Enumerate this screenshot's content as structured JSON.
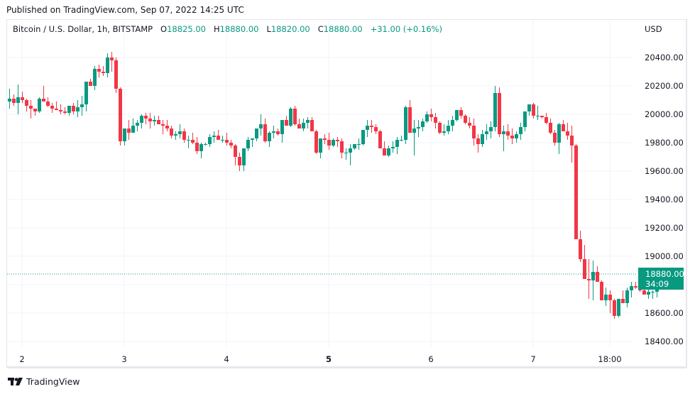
{
  "header": {
    "published": "Published on TradingView.com, Sep 07, 2022 14:25 UTC"
  },
  "legend": {
    "symbol": "Bitcoin / U.S. Dollar, 1h, BITSTAMP",
    "o_label": "O",
    "o_value": "18825.00",
    "h_label": "H",
    "h_value": "18880.00",
    "l_label": "L",
    "l_value": "18820.00",
    "c_label": "C",
    "c_value": "18880.00",
    "change": "+31.00 (+0.16%)"
  },
  "price_axis": {
    "currency": "USD",
    "ticks": [
      "20400.00",
      "20200.00",
      "20000.00",
      "19800.00",
      "19600.00",
      "19400.00",
      "19200.00",
      "19000.00",
      "18600.00",
      "18400.00"
    ],
    "last_price": "18880.00",
    "countdown": "34:09"
  },
  "time_axis": {
    "ticks": [
      {
        "label": "2",
        "x": 31,
        "bold": false
      },
      {
        "label": "3",
        "x": 175,
        "bold": false
      },
      {
        "label": "4",
        "x": 319,
        "bold": false
      },
      {
        "label": "5",
        "x": 463,
        "bold": true
      },
      {
        "label": "6",
        "x": 607,
        "bold": false
      },
      {
        "label": "7",
        "x": 751,
        "bold": false
      },
      {
        "label": "18:00",
        "x": 859,
        "bold": false
      }
    ]
  },
  "footer": {
    "brand": "TradingView"
  },
  "colors": {
    "up": "#089981",
    "down": "#f23645",
    "grid": "#f0f3fa",
    "frame": "#e6e6ee",
    "text": "#131722"
  },
  "chart_data": {
    "type": "candlestick",
    "title": "Bitcoin / U.S. Dollar, 1h, BITSTAMP",
    "xlabel": "",
    "ylabel": "USD",
    "ylim": [
      18330,
      20600
    ],
    "grid": true,
    "interval": "1h",
    "start": "Sep 1 21:00",
    "end": "Sep 7 14:00",
    "x_ticks": [
      "2",
      "3",
      "4",
      "5",
      "6",
      "7",
      "18:00"
    ],
    "y_ticks": [
      18400,
      18600,
      19000,
      19200,
      19400,
      19600,
      19800,
      20000,
      20200,
      20400
    ],
    "last": {
      "open": 18825,
      "high": 18880,
      "low": 18820,
      "close": 18880,
      "change": 31,
      "change_pct": 0.16
    },
    "candles": [
      [
        20090,
        20180,
        20040,
        20110
      ],
      [
        20110,
        20140,
        20060,
        20080
      ],
      [
        20080,
        20210,
        20000,
        20120
      ],
      [
        20120,
        20160,
        20080,
        20100
      ],
      [
        20100,
        20110,
        20020,
        20060
      ],
      [
        20060,
        20100,
        19970,
        20040
      ],
      [
        20040,
        20040,
        19990,
        20020
      ],
      [
        20020,
        20120,
        20010,
        20110
      ],
      [
        20110,
        20200,
        20090,
        20090
      ],
      [
        20090,
        20120,
        20050,
        20060
      ],
      [
        20060,
        20080,
        20010,
        20040
      ],
      [
        20040,
        20090,
        20030,
        20030
      ],
      [
        20030,
        20070,
        20000,
        20020
      ],
      [
        20020,
        20050,
        20000,
        20010
      ],
      [
        20010,
        20050,
        19990,
        20060
      ],
      [
        20060,
        20080,
        20000,
        20020
      ],
      [
        20020,
        20100,
        19980,
        20050
      ],
      [
        20050,
        20130,
        19990,
        20070
      ],
      [
        20070,
        20170,
        20020,
        20230
      ],
      [
        20230,
        20250,
        20200,
        20200
      ],
      [
        20200,
        20340,
        20170,
        20320
      ],
      [
        20320,
        20350,
        20260,
        20300
      ],
      [
        20300,
        20340,
        20270,
        20290
      ],
      [
        20290,
        20430,
        20260,
        20400
      ],
      [
        20400,
        20440,
        20300,
        20380
      ],
      [
        20380,
        20400,
        20150,
        20180
      ],
      [
        20180,
        20190,
        19780,
        19810
      ],
      [
        19810,
        19900,
        19780,
        19900
      ],
      [
        19900,
        19960,
        19820,
        19870
      ],
      [
        19870,
        19970,
        19870,
        19920
      ],
      [
        19920,
        19960,
        19880,
        19940
      ],
      [
        19940,
        20000,
        19900,
        19990
      ],
      [
        19990,
        20010,
        19930,
        19970
      ],
      [
        19970,
        20010,
        19900,
        19950
      ],
      [
        19950,
        19990,
        19920,
        19960
      ],
      [
        19960,
        19990,
        19930,
        19930
      ],
      [
        19930,
        19960,
        19860,
        19920
      ],
      [
        19920,
        19960,
        19880,
        19900
      ],
      [
        19900,
        19920,
        19830,
        19850
      ],
      [
        19850,
        19880,
        19820,
        19860
      ],
      [
        19860,
        19930,
        19830,
        19880
      ],
      [
        19880,
        19900,
        19800,
        19820
      ],
      [
        19820,
        19850,
        19760,
        19820
      ],
      [
        19820,
        19870,
        19790,
        19800
      ],
      [
        19800,
        19840,
        19720,
        19740
      ],
      [
        19740,
        19800,
        19690,
        19790
      ],
      [
        19790,
        19800,
        19780,
        19790
      ],
      [
        19790,
        19860,
        19770,
        19840
      ],
      [
        19840,
        19880,
        19800,
        19850
      ],
      [
        19850,
        19890,
        19820,
        19820
      ],
      [
        19820,
        19850,
        19800,
        19820
      ],
      [
        19820,
        19870,
        19780,
        19800
      ],
      [
        19800,
        19820,
        19760,
        19780
      ],
      [
        19780,
        19790,
        19640,
        19700
      ],
      [
        19700,
        19730,
        19600,
        19640
      ],
      [
        19640,
        19760,
        19600,
        19760
      ],
      [
        19760,
        19840,
        19740,
        19820
      ],
      [
        19820,
        19830,
        19770,
        19830
      ],
      [
        19830,
        19880,
        19810,
        19900
      ],
      [
        19900,
        20000,
        19850,
        19930
      ],
      [
        19930,
        19970,
        19800,
        19810
      ],
      [
        19810,
        19880,
        19770,
        19870
      ],
      [
        19870,
        19920,
        19830,
        19880
      ],
      [
        19880,
        19900,
        19850,
        19860
      ],
      [
        19860,
        19950,
        19800,
        19960
      ],
      [
        19960,
        19990,
        19940,
        19920
      ],
      [
        19920,
        20050,
        19910,
        20040
      ],
      [
        20040,
        20060,
        19920,
        19930
      ],
      [
        19930,
        19970,
        19900,
        19900
      ],
      [
        19900,
        19970,
        19880,
        19940
      ],
      [
        19940,
        19980,
        19900,
        19960
      ],
      [
        19960,
        19980,
        19880,
        19880
      ],
      [
        19880,
        19890,
        19720,
        19730
      ],
      [
        19730,
        19830,
        19690,
        19830
      ],
      [
        19830,
        19860,
        19790,
        19820
      ],
      [
        19820,
        19870,
        19750,
        19780
      ],
      [
        19780,
        19830,
        19770,
        19820
      ],
      [
        19820,
        19840,
        19770,
        19810
      ],
      [
        19810,
        19830,
        19690,
        19730
      ],
      [
        19730,
        19760,
        19680,
        19730
      ],
      [
        19730,
        19790,
        19640,
        19760
      ],
      [
        19760,
        19790,
        19750,
        19790
      ],
      [
        19790,
        19830,
        19750,
        19790
      ],
      [
        19790,
        19890,
        19780,
        19890
      ],
      [
        19890,
        19960,
        19840,
        19920
      ],
      [
        19920,
        19960,
        19870,
        19910
      ],
      [
        19910,
        19930,
        19860,
        19880
      ],
      [
        19880,
        19890,
        19760,
        19760
      ],
      [
        19760,
        19810,
        19710,
        19710
      ],
      [
        19710,
        19780,
        19700,
        19760
      ],
      [
        19760,
        19810,
        19730,
        19770
      ],
      [
        19770,
        19840,
        19720,
        19820
      ],
      [
        19820,
        19850,
        19810,
        19820
      ],
      [
        19820,
        20060,
        19790,
        20050
      ],
      [
        20050,
        20100,
        19940,
        19870
      ],
      [
        19870,
        19960,
        19710,
        19900
      ],
      [
        19900,
        19960,
        19840,
        19910
      ],
      [
        19910,
        19970,
        19880,
        19950
      ],
      [
        19950,
        20020,
        19940,
        20000
      ],
      [
        20000,
        20040,
        19950,
        19980
      ],
      [
        19980,
        20010,
        19900,
        19940
      ],
      [
        19940,
        19950,
        19860,
        19870
      ],
      [
        19870,
        19930,
        19850,
        19880
      ],
      [
        19880,
        19960,
        19860,
        19920
      ],
      [
        19920,
        19990,
        19880,
        19960
      ],
      [
        19960,
        20020,
        19950,
        20030
      ],
      [
        20030,
        20050,
        19970,
        19990
      ],
      [
        19990,
        20000,
        19930,
        19940
      ],
      [
        19940,
        19980,
        19900,
        19920
      ],
      [
        19920,
        19970,
        19780,
        19830
      ],
      [
        19830,
        19860,
        19730,
        19790
      ],
      [
        19790,
        19890,
        19770,
        19860
      ],
      [
        19860,
        19930,
        19820,
        19880
      ],
      [
        19880,
        19950,
        19830,
        19910
      ],
      [
        19910,
        20200,
        19880,
        20150
      ],
      [
        20150,
        20190,
        19840,
        19860
      ],
      [
        19860,
        19920,
        19740,
        19880
      ],
      [
        19880,
        19930,
        19820,
        19850
      ],
      [
        19850,
        19900,
        19790,
        19830
      ],
      [
        19830,
        19880,
        19800,
        19860
      ],
      [
        19860,
        19940,
        19820,
        19910
      ],
      [
        19910,
        20000,
        19880,
        20020
      ],
      [
        20020,
        20070,
        19990,
        20070
      ],
      [
        20070,
        20080,
        19970,
        19990
      ],
      [
        19990,
        20060,
        19960,
        19990
      ],
      [
        19990,
        19990,
        19970,
        19980
      ],
      [
        19980,
        20010,
        19930,
        19940
      ],
      [
        19940,
        19970,
        19860,
        19870
      ],
      [
        19870,
        19890,
        19780,
        19800
      ],
      [
        19800,
        19940,
        19720,
        19930
      ],
      [
        19930,
        19960,
        19900,
        19880
      ],
      [
        19880,
        19940,
        19820,
        19850
      ],
      [
        19850,
        19920,
        19660,
        19780
      ],
      [
        19780,
        19790,
        19130,
        19120
      ],
      [
        19120,
        19180,
        18960,
        18980
      ],
      [
        18980,
        19080,
        18920,
        18840
      ],
      [
        18840,
        18980,
        18700,
        18830
      ],
      [
        18830,
        18970,
        18690,
        18890
      ],
      [
        18890,
        18930,
        18820,
        18820
      ],
      [
        18820,
        18830,
        18720,
        18690
      ],
      [
        18690,
        18780,
        18650,
        18730
      ],
      [
        18730,
        18760,
        18600,
        18690
      ],
      [
        18690,
        18700,
        18560,
        18580
      ],
      [
        18580,
        18700,
        18570,
        18700
      ],
      [
        18700,
        18760,
        18670,
        18670
      ],
      [
        18670,
        18780,
        18640,
        18760
      ],
      [
        18760,
        18820,
        18710,
        18790
      ],
      [
        18790,
        18820,
        18770,
        18780
      ],
      [
        18780,
        18820,
        18750,
        18760
      ],
      [
        18760,
        18790,
        18730,
        18730
      ],
      [
        18730,
        18800,
        18700,
        18750
      ],
      [
        18750,
        18760,
        18700,
        18750
      ],
      [
        18750,
        18780,
        18710,
        18825
      ],
      [
        18825,
        18880,
        18820,
        18880
      ]
    ]
  }
}
